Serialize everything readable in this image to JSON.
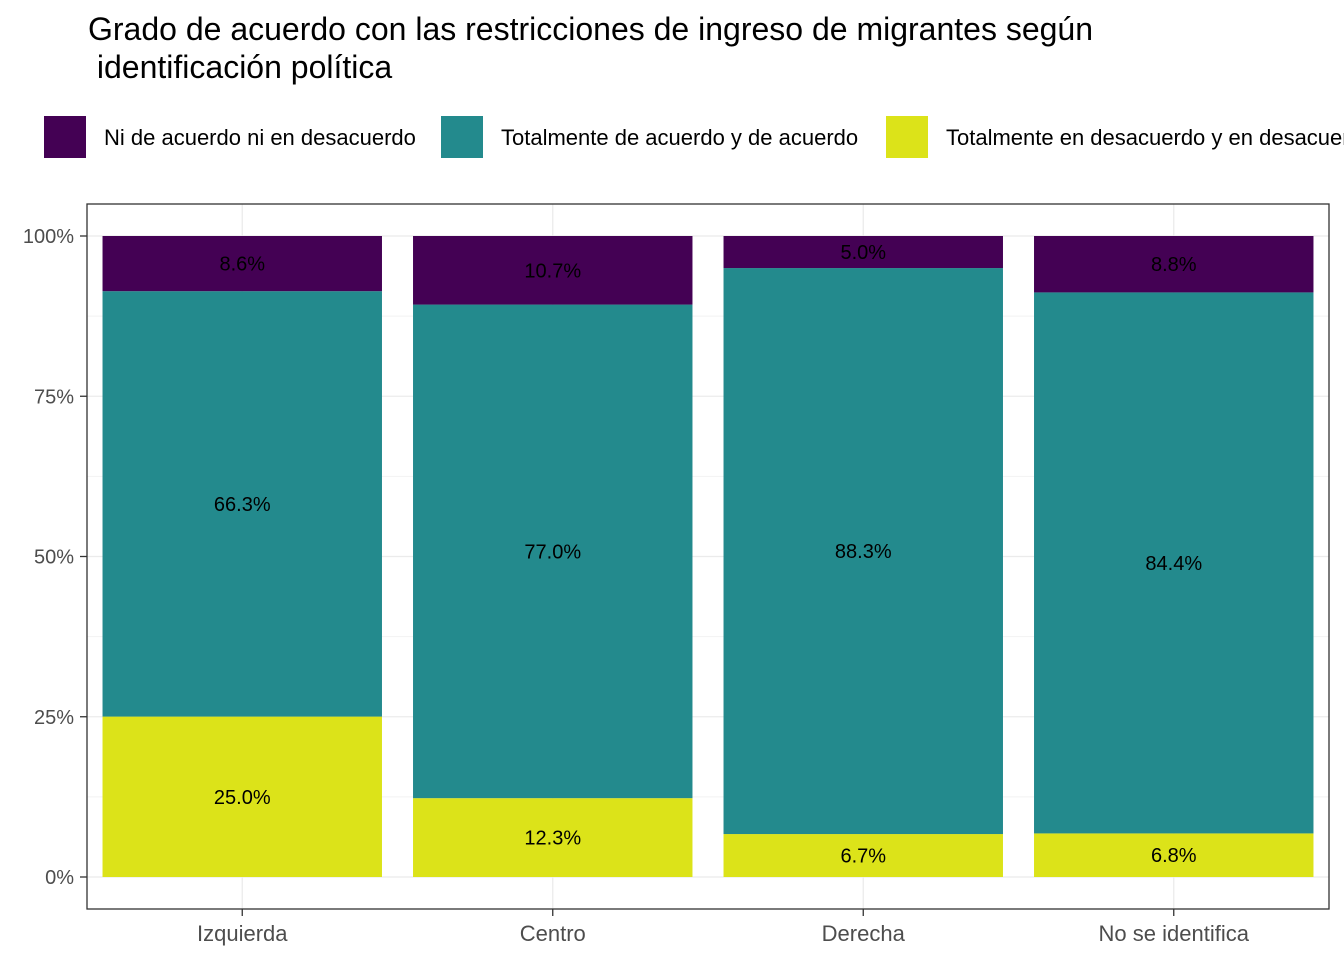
{
  "chart_data": {
    "type": "bar",
    "stacked": true,
    "title": "Grado de acuerdo con las restricciones de ingreso de migrantes según\n identificación política",
    "categories": [
      "Izquierda",
      "Centro",
      "Derecha",
      "No se identifica"
    ],
    "series": [
      {
        "name": "Totalmente en desacuerdo y en desacuerdo",
        "color": "#DCE319",
        "values": [
          25.0,
          12.3,
          6.7,
          6.8
        ],
        "labels": [
          "25.0%",
          "12.3%",
          "6.7%",
          "6.8%"
        ]
      },
      {
        "name": "Totalmente de acuerdo y de acuerdo",
        "color": "#238A8D",
        "values": [
          66.3,
          77.0,
          88.3,
          84.4
        ],
        "labels": [
          "66.3%",
          "77.0%",
          "88.3%",
          "84.4%"
        ]
      },
      {
        "name": "Ni de acuerdo ni en desacuerdo",
        "color": "#440154",
        "values": [
          8.6,
          10.7,
          5.0,
          8.8
        ],
        "labels": [
          "8.6%",
          "10.7%",
          "5.0%",
          "8.8%"
        ]
      }
    ],
    "legend_order": [
      "Ni de acuerdo ni en desacuerdo",
      "Totalmente de acuerdo y de acuerdo",
      "Totalmente en desacuerdo y en desacuerdo"
    ],
    "legend_position": "top",
    "ylim": [
      0,
      100
    ],
    "yticks": [
      0,
      25,
      50,
      75,
      100
    ],
    "ytick_labels": [
      "0%",
      "25%",
      "50%",
      "75%",
      "100%"
    ],
    "grid": true,
    "xlabel": "",
    "ylabel": ""
  }
}
